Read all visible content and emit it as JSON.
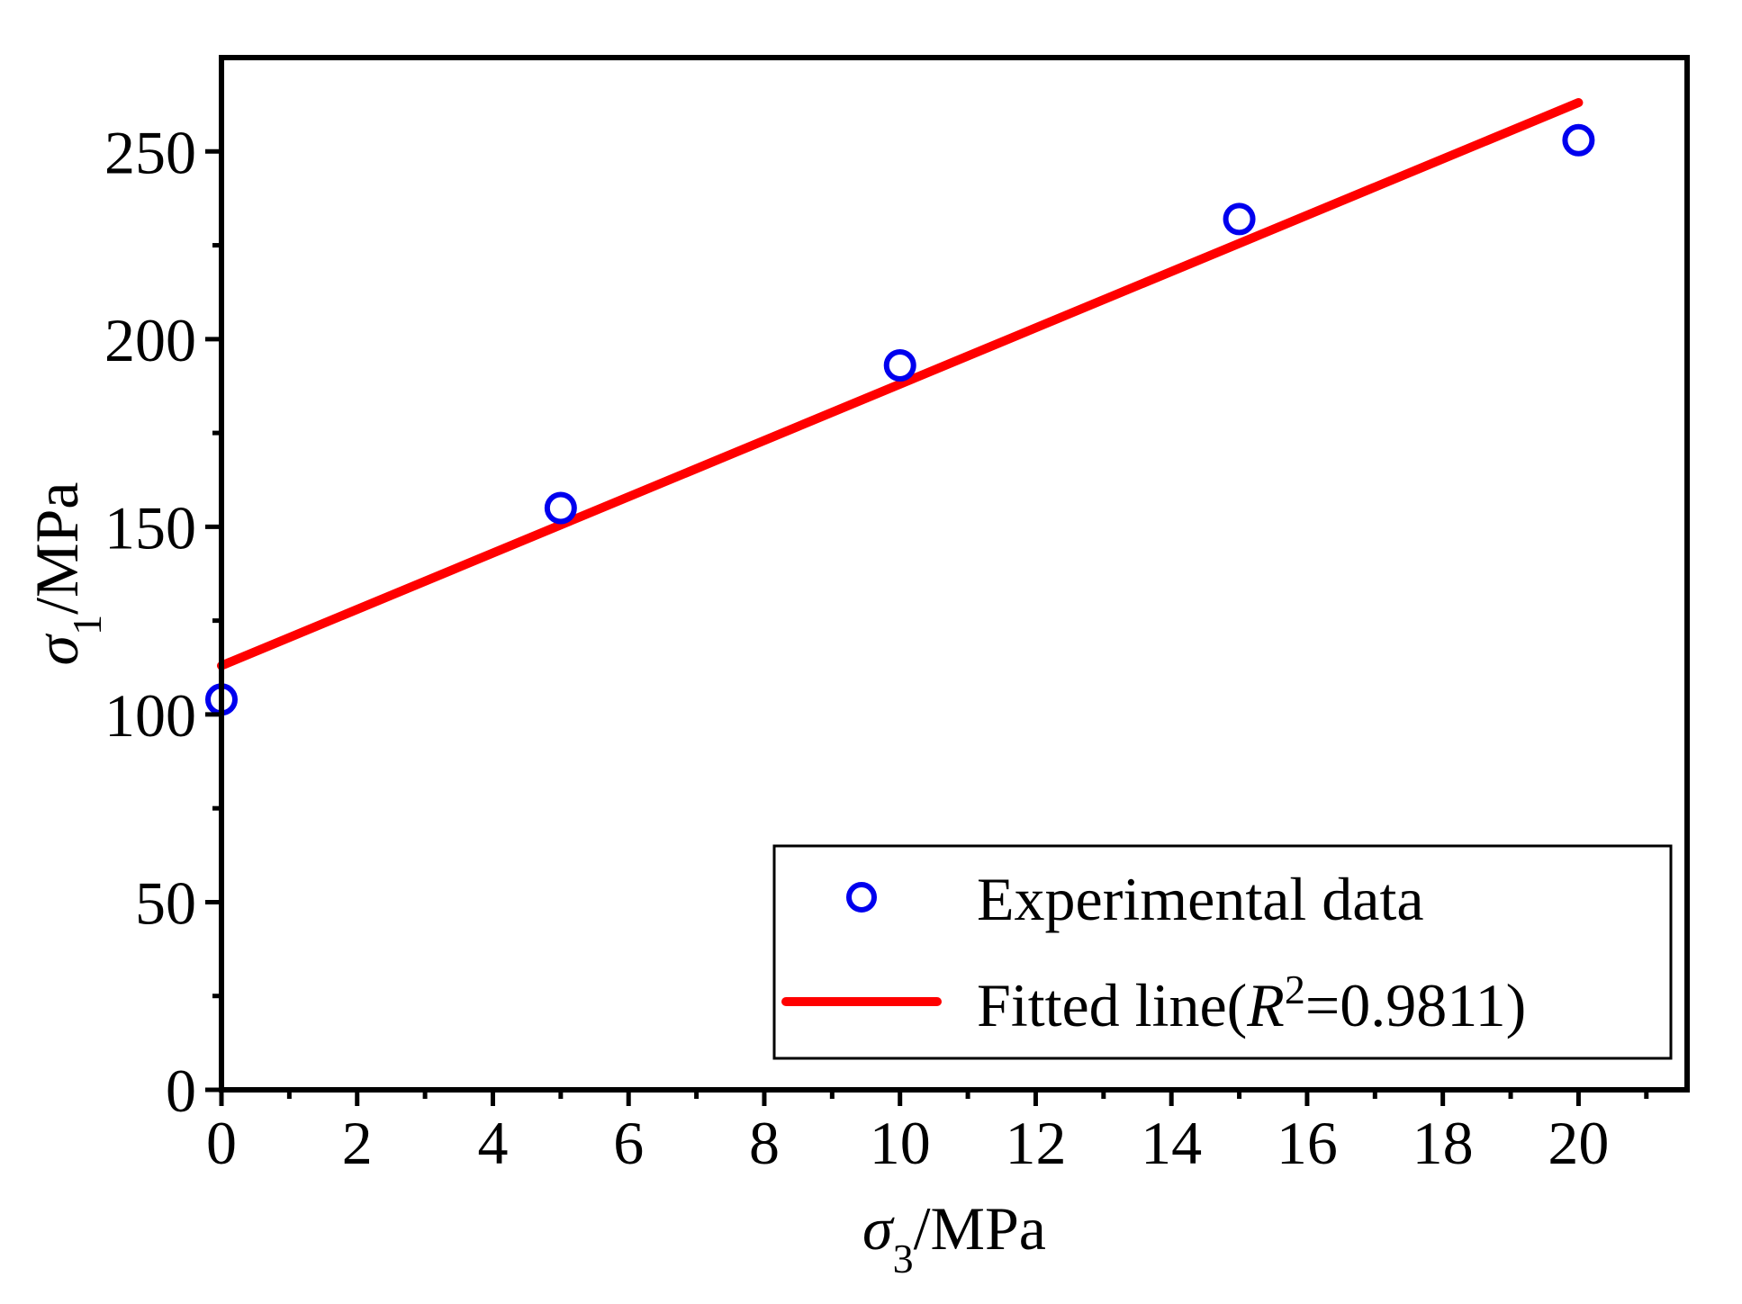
{
  "chart_data": {
    "type": "scatter",
    "xlabel": {
      "symbol": "σ",
      "sub": "3",
      "unit": "/MPa"
    },
    "ylabel": {
      "symbol": "σ",
      "sub": "1",
      "unit": "/MPa"
    },
    "xlim": [
      0,
      21.6
    ],
    "ylim": [
      0,
      275
    ],
    "x_ticks": [
      0,
      2,
      4,
      6,
      8,
      10,
      12,
      14,
      16,
      18,
      20
    ],
    "x_tick_labels": [
      "0",
      "2",
      "4",
      "6",
      "8",
      "10",
      "12",
      "14",
      "16",
      "18",
      "20"
    ],
    "x_minor_ticks": [
      1,
      3,
      5,
      7,
      9,
      11,
      13,
      15,
      17,
      19,
      21
    ],
    "y_ticks": [
      0,
      50,
      100,
      150,
      200,
      250
    ],
    "y_tick_labels": [
      "0",
      "50",
      "100",
      "150",
      "200",
      "250"
    ],
    "y_minor_ticks": [
      25,
      75,
      125,
      175,
      225
    ],
    "grid": false,
    "legend_position": "bottom-right",
    "series": [
      {
        "name": "Experimental data",
        "kind": "scatter",
        "marker": "open-circle",
        "color": "#0000ee",
        "x": [
          0,
          5,
          10,
          15,
          20
        ],
        "y": [
          104,
          155,
          193,
          232,
          253
        ]
      },
      {
        "name": "Fitted line",
        "name_parts": {
          "prefix": "Fitted line(",
          "r": "R",
          "sup": "2",
          "suffix": "=0.9811)"
        },
        "kind": "line",
        "color": "#ff0000",
        "x": [
          0,
          20
        ],
        "y": [
          113,
          263
        ]
      }
    ]
  }
}
